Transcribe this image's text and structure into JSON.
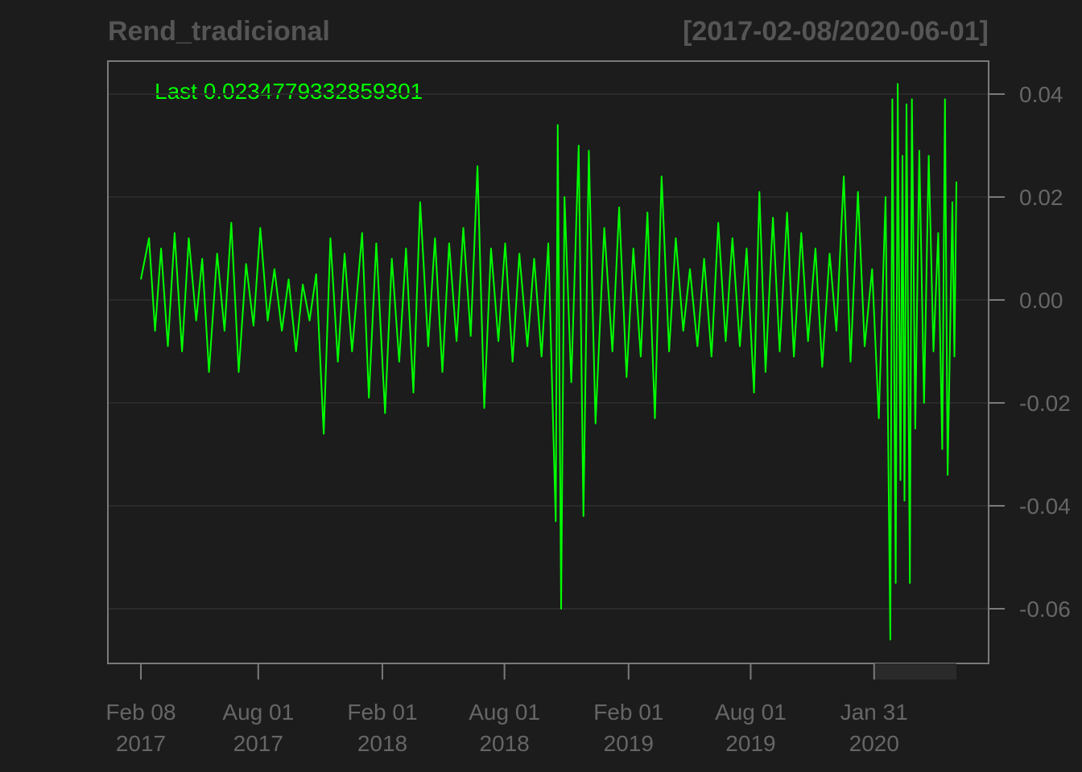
{
  "header": {
    "series_name": "Rend_tradicional",
    "date_range": "[2017-02-08/2020-06-01]"
  },
  "last_label": "Last 0.0234779332859301",
  "colors": {
    "background": "#1c1c1c",
    "frame": "#7a7a7a",
    "grid": "#2a2a2a",
    "line": "#00ff00",
    "axis_text": "#666666",
    "title_text": "#555555"
  },
  "chart_data": {
    "type": "line",
    "title": "Rend_tradicional",
    "subtitle": "[2017-02-08/2020-06-01]",
    "xlabel": "",
    "ylabel": "",
    "x_range": [
      "2017-02-08",
      "2020-06-01"
    ],
    "ylim": [
      -0.07,
      0.045
    ],
    "grid": true,
    "y_axis_side": "right",
    "y_ticks": [
      {
        "value": 0.04,
        "label": "0.04"
      },
      {
        "value": 0.02,
        "label": "0.02"
      },
      {
        "value": 0.0,
        "label": "0.00"
      },
      {
        "value": -0.02,
        "label": "-0.02"
      },
      {
        "value": -0.04,
        "label": "-0.04"
      },
      {
        "value": -0.06,
        "label": "-0.06"
      }
    ],
    "x_ticks": [
      {
        "date": "2017-02-08",
        "line1": "Feb 08",
        "line2": "2017"
      },
      {
        "date": "2017-08-01",
        "line1": "Aug 01",
        "line2": "2017"
      },
      {
        "date": "2018-02-01",
        "line1": "Feb 01",
        "line2": "2018"
      },
      {
        "date": "2018-08-01",
        "line1": "Aug 01",
        "line2": "2018"
      },
      {
        "date": "2019-02-01",
        "line1": "Feb 01",
        "line2": "2019"
      },
      {
        "date": "2019-08-01",
        "line1": "Aug 01",
        "line2": "2019"
      },
      {
        "date": "2020-01-31",
        "line1": "Jan 31",
        "line2": "2020"
      }
    ],
    "series": [
      {
        "name": "Rend_tradicional",
        "last_value": 0.0234779332859301,
        "points": [
          [
            "2017-02-08",
            0.004
          ],
          [
            "2017-02-20",
            0.012
          ],
          [
            "2017-03-01",
            -0.006
          ],
          [
            "2017-03-10",
            0.01
          ],
          [
            "2017-03-20",
            -0.009
          ],
          [
            "2017-03-30",
            0.013
          ],
          [
            "2017-04-10",
            -0.01
          ],
          [
            "2017-04-20",
            0.012
          ],
          [
            "2017-05-01",
            -0.004
          ],
          [
            "2017-05-10",
            0.008
          ],
          [
            "2017-05-20",
            -0.014
          ],
          [
            "2017-06-01",
            0.009
          ],
          [
            "2017-06-12",
            -0.006
          ],
          [
            "2017-06-22",
            0.015
          ],
          [
            "2017-07-03",
            -0.014
          ],
          [
            "2017-07-14",
            0.007
          ],
          [
            "2017-07-25",
            -0.005
          ],
          [
            "2017-08-04",
            0.014
          ],
          [
            "2017-08-15",
            -0.004
          ],
          [
            "2017-08-25",
            0.006
          ],
          [
            "2017-09-05",
            -0.006
          ],
          [
            "2017-09-15",
            0.004
          ],
          [
            "2017-09-26",
            -0.01
          ],
          [
            "2017-10-06",
            0.003
          ],
          [
            "2017-10-16",
            -0.004
          ],
          [
            "2017-10-26",
            0.005
          ],
          [
            "2017-11-06",
            -0.026
          ],
          [
            "2017-11-16",
            0.012
          ],
          [
            "2017-11-27",
            -0.012
          ],
          [
            "2017-12-07",
            0.009
          ],
          [
            "2017-12-18",
            -0.01
          ],
          [
            "2018-01-02",
            0.013
          ],
          [
            "2018-01-12",
            -0.019
          ],
          [
            "2018-01-23",
            0.011
          ],
          [
            "2018-02-05",
            -0.022
          ],
          [
            "2018-02-15",
            0.008
          ],
          [
            "2018-02-26",
            -0.012
          ],
          [
            "2018-03-08",
            0.01
          ],
          [
            "2018-03-19",
            -0.018
          ],
          [
            "2018-03-29",
            0.019
          ],
          [
            "2018-04-10",
            -0.009
          ],
          [
            "2018-04-20",
            0.012
          ],
          [
            "2018-05-01",
            -0.014
          ],
          [
            "2018-05-11",
            0.011
          ],
          [
            "2018-05-22",
            -0.008
          ],
          [
            "2018-06-01",
            0.014
          ],
          [
            "2018-06-12",
            -0.007
          ],
          [
            "2018-06-22",
            0.026
          ],
          [
            "2018-07-02",
            -0.021
          ],
          [
            "2018-07-12",
            0.01
          ],
          [
            "2018-07-23",
            -0.008
          ],
          [
            "2018-08-02",
            0.011
          ],
          [
            "2018-08-13",
            -0.012
          ],
          [
            "2018-08-23",
            0.009
          ],
          [
            "2018-09-04",
            -0.009
          ],
          [
            "2018-09-14",
            0.008
          ],
          [
            "2018-09-25",
            -0.011
          ],
          [
            "2018-10-05",
            0.011
          ],
          [
            "2018-10-16",
            -0.043
          ],
          [
            "2018-10-19",
            0.034
          ],
          [
            "2018-10-24",
            -0.06
          ],
          [
            "2018-10-29",
            0.02
          ],
          [
            "2018-11-08",
            -0.016
          ],
          [
            "2018-11-19",
            0.03
          ],
          [
            "2018-11-26",
            -0.042
          ],
          [
            "2018-12-04",
            0.029
          ],
          [
            "2018-12-14",
            -0.024
          ],
          [
            "2018-12-27",
            0.014
          ],
          [
            "2019-01-08",
            -0.01
          ],
          [
            "2019-01-18",
            0.018
          ],
          [
            "2019-01-29",
            -0.015
          ],
          [
            "2019-02-08",
            0.01
          ],
          [
            "2019-02-19",
            -0.011
          ],
          [
            "2019-03-01",
            0.017
          ],
          [
            "2019-03-12",
            -0.023
          ],
          [
            "2019-03-22",
            0.024
          ],
          [
            "2019-04-02",
            -0.01
          ],
          [
            "2019-04-12",
            0.012
          ],
          [
            "2019-04-23",
            -0.006
          ],
          [
            "2019-05-03",
            0.006
          ],
          [
            "2019-05-14",
            -0.009
          ],
          [
            "2019-05-24",
            0.008
          ],
          [
            "2019-06-04",
            -0.011
          ],
          [
            "2019-06-14",
            0.015
          ],
          [
            "2019-06-25",
            -0.008
          ],
          [
            "2019-07-05",
            0.012
          ],
          [
            "2019-07-16",
            -0.009
          ],
          [
            "2019-07-26",
            0.01
          ],
          [
            "2019-08-06",
            -0.018
          ],
          [
            "2019-08-14",
            0.021
          ],
          [
            "2019-08-23",
            -0.014
          ],
          [
            "2019-09-03",
            0.016
          ],
          [
            "2019-09-13",
            -0.01
          ],
          [
            "2019-09-24",
            0.017
          ],
          [
            "2019-10-04",
            -0.011
          ],
          [
            "2019-10-15",
            0.013
          ],
          [
            "2019-10-25",
            -0.008
          ],
          [
            "2019-11-05",
            0.01
          ],
          [
            "2019-11-15",
            -0.013
          ],
          [
            "2019-11-26",
            0.009
          ],
          [
            "2019-12-06",
            -0.006
          ],
          [
            "2019-12-17",
            0.024
          ],
          [
            "2019-12-27",
            -0.012
          ],
          [
            "2020-01-07",
            0.021
          ],
          [
            "2020-01-17",
            -0.009
          ],
          [
            "2020-01-28",
            0.006
          ],
          [
            "2020-02-07",
            -0.023
          ],
          [
            "2020-02-17",
            0.02
          ],
          [
            "2020-02-24",
            -0.066
          ],
          [
            "2020-02-27",
            0.039
          ],
          [
            "2020-03-03",
            -0.055
          ],
          [
            "2020-03-06",
            0.042
          ],
          [
            "2020-03-10",
            -0.035
          ],
          [
            "2020-03-13",
            0.028
          ],
          [
            "2020-03-16",
            -0.039
          ],
          [
            "2020-03-19",
            0.038
          ],
          [
            "2020-03-24",
            -0.055
          ],
          [
            "2020-03-27",
            0.039
          ],
          [
            "2020-04-01",
            -0.025
          ],
          [
            "2020-04-07",
            0.029
          ],
          [
            "2020-04-14",
            -0.02
          ],
          [
            "2020-04-21",
            0.028
          ],
          [
            "2020-04-28",
            -0.01
          ],
          [
            "2020-05-05",
            0.013
          ],
          [
            "2020-05-11",
            -0.029
          ],
          [
            "2020-05-15",
            0.039
          ],
          [
            "2020-05-19",
            -0.034
          ],
          [
            "2020-05-26",
            0.019
          ],
          [
            "2020-05-29",
            -0.011
          ],
          [
            "2020-06-01",
            0.023
          ]
        ]
      }
    ]
  }
}
